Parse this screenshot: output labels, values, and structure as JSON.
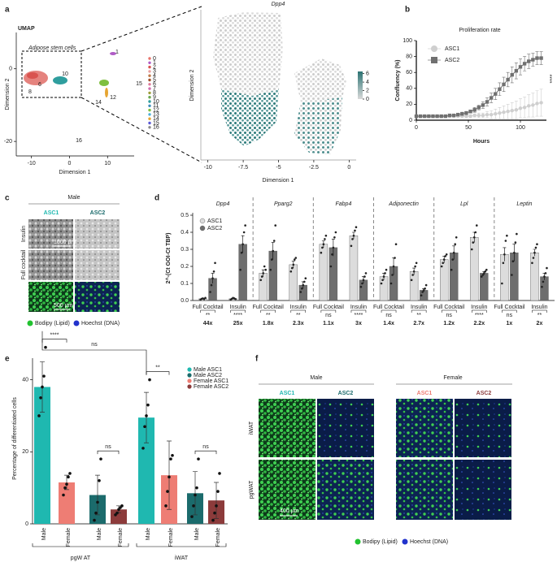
{
  "panels": [
    "a",
    "b",
    "c",
    "d",
    "e",
    "f"
  ],
  "chart_data": [
    {
      "type": "umap",
      "title": "UMAP",
      "annotation": "Adipose stem cells",
      "xlabel": "Dimension 1",
      "ylabel": "Dimension 2",
      "xlim": [
        -14,
        17
      ],
      "ylim": [
        -24,
        10
      ],
      "xticks": [
        -10,
        0,
        10
      ],
      "yticks": [
        0,
        -20
      ],
      "cluster_labels": [
        "1",
        "10",
        "8",
        "6",
        "15",
        "14",
        "12",
        "16"
      ],
      "legend": {
        "names": [
          "0",
          "1",
          "2",
          "3",
          "4",
          "5",
          "6",
          "7",
          "8",
          "9",
          "10",
          "11",
          "12",
          "13",
          "14",
          "15",
          "16"
        ],
        "colors": [
          "#e8736b",
          "#b05cc6",
          "#d9534f",
          "#e8a0a0",
          "#c07a4a",
          "#a0522d",
          "#e07a9a",
          "#d06fb0",
          "#9e9e3a",
          "#6aa84f",
          "#2f9e9e",
          "#3c8dbc",
          "#7fbf3f",
          "#4ab0d9",
          "#e6a532",
          "#5b5bd6",
          "#8a8a8a"
        ]
      }
    },
    {
      "type": "expression_scatter",
      "title": "Dpp4",
      "xlabel": "Dimension 1",
      "ylabel": "Dimension 2",
      "xlim": [
        -10.5,
        0.5
      ],
      "xticks": [
        -10,
        -7.5,
        -5,
        -2.5,
        0
      ],
      "colorbar": {
        "lim": [
          0,
          6.5
        ],
        "ticks": [
          0,
          2,
          4,
          6
        ],
        "colors": [
          "#d9d9d9",
          "#2c7474"
        ]
      }
    },
    {
      "type": "line",
      "title": "Proliferation rate",
      "xlabel": "Hours",
      "ylabel": "Confluency (%)",
      "xlim": [
        0,
        125
      ],
      "ylim": [
        0,
        100
      ],
      "xticks": [
        0,
        50,
        100
      ],
      "yticks": [
        0,
        20,
        40,
        60,
        80,
        100
      ],
      "legend": "upper left",
      "significance": "****",
      "x": [
        0,
        4,
        8,
        12,
        16,
        20,
        24,
        28,
        32,
        36,
        40,
        44,
        48,
        52,
        56,
        60,
        64,
        68,
        72,
        76,
        80,
        84,
        88,
        92,
        96,
        100,
        104,
        108,
        112,
        116,
        120
      ],
      "series": [
        {
          "name": "ASC1",
          "color": "#cfcfcf",
          "marker": "circle",
          "values": [
            5,
            5,
            5,
            5,
            5,
            5,
            5,
            5,
            5,
            5,
            5,
            5,
            5,
            5,
            6,
            6,
            6,
            7,
            7,
            8,
            9,
            10,
            11,
            12,
            13,
            15,
            16,
            18,
            19,
            21,
            22
          ],
          "errors": [
            1,
            1,
            1,
            1,
            1,
            1,
            1,
            1,
            1,
            1,
            1,
            1,
            2,
            2,
            2,
            3,
            3,
            4,
            5,
            6,
            7,
            8,
            9,
            10,
            11,
            12,
            13,
            14,
            15,
            16,
            17
          ]
        },
        {
          "name": "ASC2",
          "color": "#707070",
          "marker": "square",
          "values": [
            5,
            5,
            5,
            5,
            5,
            5,
            5,
            5,
            6,
            6,
            7,
            8,
            9,
            11,
            13,
            16,
            19,
            23,
            28,
            33,
            39,
            45,
            51,
            57,
            62,
            67,
            71,
            74,
            76,
            78,
            78
          ],
          "errors": [
            1,
            1,
            1,
            1,
            1,
            1,
            1,
            1,
            1,
            1,
            1,
            2,
            2,
            2,
            3,
            3,
            4,
            5,
            6,
            7,
            8,
            9,
            9,
            10,
            10,
            10,
            9,
            9,
            8,
            8,
            8
          ]
        }
      ]
    },
    {
      "type": "grouped_bar",
      "ylabel": "2^-(Ct GOI-Ct TBP)",
      "ylim": [
        0,
        0.5
      ],
      "yticks": [
        {
          "value": 0,
          "label": "0.0"
        },
        0.1,
        0.2,
        0.3,
        0.4,
        0.5
      ],
      "legend": "upper left",
      "groups": [
        "Dpp4",
        "Pparg2",
        "Fabp4",
        "Adiponectin",
        "Lpl",
        "Leptin"
      ],
      "categories": [
        "Full Cocktail",
        "Insulin",
        "Full Cocktail",
        "Insulin",
        "Full Cocktail",
        "Insulin",
        "Full Cocktail",
        "Insulin",
        "Full Cocktail",
        "Insulin",
        "Full Cocktail",
        "Insulin"
      ],
      "significance": [
        "**",
        "****",
        "**",
        "**",
        "ns",
        "****",
        "ns",
        "**",
        "ns",
        "****",
        "ns",
        "**"
      ],
      "fold_changes": [
        "44x",
        "25x",
        "1.8x",
        "2.3x",
        "1.1x",
        "3x",
        "1.4x",
        "2.7x",
        "1.2x",
        "2.2x",
        "1x",
        "2x"
      ],
      "series": [
        {
          "name": "ASC1",
          "color": "#dcdcdc",
          "values": [
            0.01,
            0.01,
            0.16,
            0.21,
            0.33,
            0.38,
            0.14,
            0.17,
            0.24,
            0.37,
            0.27,
            0.28
          ],
          "errors": [
            0.002,
            0.002,
            0.02,
            0.02,
            0.02,
            0.02,
            0.02,
            0.02,
            0.02,
            0.03,
            0.04,
            0.02
          ],
          "points": [
            [
              0.005,
              0.01,
              0.012,
              0.008,
              0.015
            ],
            [
              0.005,
              0.01,
              0.015,
              0.012,
              0.008
            ],
            [
              0.12,
              0.14,
              0.16,
              0.2,
              0.18
            ],
            [
              0.17,
              0.19,
              0.21,
              0.24,
              0.25
            ],
            [
              0.28,
              0.31,
              0.33,
              0.36,
              0.38
            ],
            [
              0.32,
              0.36,
              0.38,
              0.41,
              0.43
            ],
            [
              0.1,
              0.12,
              0.14,
              0.16,
              0.18
            ],
            [
              0.12,
              0.15,
              0.17,
              0.2,
              0.22
            ],
            [
              0.2,
              0.22,
              0.24,
              0.26,
              0.27
            ],
            [
              0.3,
              0.34,
              0.37,
              0.4,
              0.44
            ],
            [
              0.1,
              0.22,
              0.27,
              0.35,
              0.38
            ],
            [
              0.22,
              0.25,
              0.28,
              0.31,
              0.33
            ]
          ]
        },
        {
          "name": "ASC2",
          "color": "#6e6e6e",
          "values": [
            0.13,
            0.33,
            0.29,
            0.09,
            0.31,
            0.12,
            0.2,
            0.06,
            0.28,
            0.16,
            0.28,
            0.14
          ],
          "errors": [
            0.03,
            0.05,
            0.05,
            0.02,
            0.05,
            0.02,
            0.05,
            0.01,
            0.04,
            0.01,
            0.05,
            0.02
          ],
          "points": [
            [
              0.05,
              0.09,
              0.13,
              0.17,
              0.22
            ],
            [
              0.18,
              0.28,
              0.33,
              0.4,
              0.44
            ],
            [
              0.18,
              0.24,
              0.29,
              0.35,
              0.44
            ],
            [
              0.05,
              0.07,
              0.09,
              0.11,
              0.13
            ],
            [
              0.2,
              0.27,
              0.31,
              0.37,
              0.4
            ],
            [
              0.08,
              0.1,
              0.12,
              0.14,
              0.16
            ],
            [
              0.1,
              0.15,
              0.2,
              0.25,
              0.33
            ],
            [
              0.03,
              0.05,
              0.06,
              0.07,
              0.09
            ],
            [
              0.18,
              0.24,
              0.28,
              0.33,
              0.37
            ],
            [
              0.14,
              0.15,
              0.16,
              0.17,
              0.18
            ],
            [
              0.15,
              0.23,
              0.28,
              0.34,
              0.39
            ],
            [
              0.08,
              0.11,
              0.14,
              0.16,
              0.19
            ]
          ]
        }
      ]
    },
    {
      "type": "bar",
      "ylabel": "Percentage of differentiated cells",
      "ylim": [
        0,
        46
      ],
      "yticks": [
        0,
        20,
        40
      ],
      "categories": [
        "Male",
        "Female",
        "Male",
        "Female",
        "Male",
        "Female",
        "Male",
        "Female"
      ],
      "groups": [
        "pgW AT",
        "iWAT"
      ],
      "values": [
        38,
        11.5,
        8,
        4,
        29.5,
        13.5,
        8.5,
        6.5
      ],
      "errors": [
        7,
        2,
        5.5,
        1,
        7,
        9.5,
        6,
        5
      ],
      "points": [
        [
          30,
          35,
          38,
          41,
          49
        ],
        [
          8,
          10,
          11,
          13,
          14
        ],
        [
          1,
          3,
          6,
          12,
          18
        ],
        [
          2.5,
          3,
          4,
          4.5,
          5
        ],
        [
          21,
          27,
          30,
          33,
          40
        ],
        [
          5,
          9,
          13,
          18,
          19
        ],
        [
          2,
          5,
          8,
          10,
          18
        ],
        [
          1,
          3,
          5,
          9,
          14
        ]
      ],
      "colors": [
        "#1fb8b0",
        "#ee7d74",
        "#1b6b6c",
        "#8c3b3b",
        "#1fb8b0",
        "#ee7d74",
        "#1b6b6c",
        "#8c3b3b"
      ],
      "comparisons": [
        "****",
        "ns",
        "**",
        "ns"
      ],
      "top_comparison": "ns",
      "legend": {
        "names": [
          "Male ASC1",
          "Male ASC2",
          "Female ASC1",
          "Female ASC2"
        ],
        "colors": [
          "#1fb8b0",
          "#1b6b6c",
          "#ee7d74",
          "#8c3b3b"
        ]
      }
    }
  ],
  "panel_c": {
    "group": "Male",
    "columns": [
      "ASC1",
      "ASC2"
    ],
    "rows": [
      "Insulin",
      "Full cocktail"
    ],
    "scale_bars": [
      "1000 µm",
      "500 µm"
    ],
    "legend": [
      "Bodipy (Lipid)",
      "Hoechst (DNA)"
    ]
  },
  "panel_f": {
    "groups": [
      "Male",
      "Female"
    ],
    "columns": [
      "ASC1",
      "ASC2",
      "ASC1",
      "ASC2"
    ],
    "rows": [
      "iWAT",
      "pgWAT"
    ],
    "scale_bar": "400 µm",
    "legend": [
      "Bodipy (Lipid)",
      "Hoechst (DNA)"
    ]
  }
}
